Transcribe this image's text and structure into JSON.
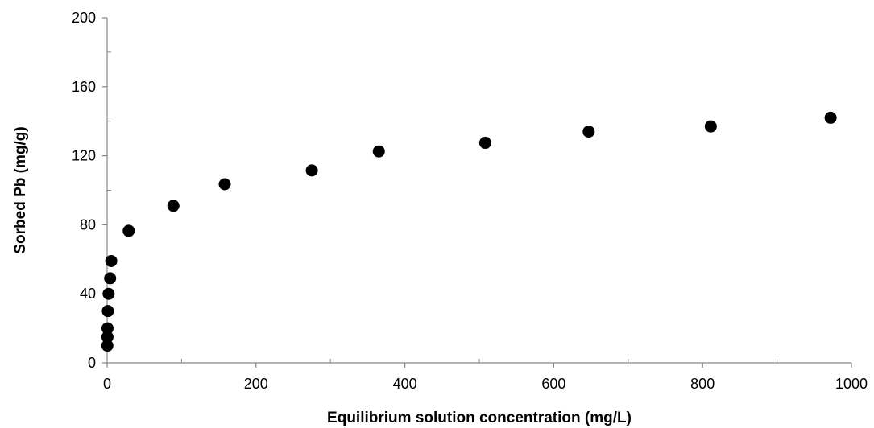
{
  "chart_data": {
    "type": "scatter",
    "title": "",
    "xlabel": "Equilibrium solution concentration (mg/L)",
    "ylabel": "Sorbed Pb (mg/g)",
    "xlim": [
      0,
      1000
    ],
    "ylim": [
      0,
      200
    ],
    "xticks": [
      0,
      200,
      400,
      600,
      800,
      1000
    ],
    "yticks": [
      0,
      40,
      80,
      120,
      160,
      200
    ],
    "xtick_labels": [
      "0",
      "200",
      "400",
      "600",
      "800",
      "1000"
    ],
    "ytick_labels": [
      "0",
      "40",
      "80",
      "120",
      "160",
      "200"
    ],
    "grid": false,
    "legend": "none",
    "marker_color": "#000000",
    "series": [
      {
        "points": [
          {
            "x": 0.3,
            "y": 10,
            "err": 0
          },
          {
            "x": 0.4,
            "y": 15,
            "err": 0
          },
          {
            "x": 0.5,
            "y": 20,
            "err": 0
          },
          {
            "x": 1.0,
            "y": 30,
            "err": 0
          },
          {
            "x": 2.0,
            "y": 40,
            "err": 0
          },
          {
            "x": 4.0,
            "y": 49,
            "err": 0
          },
          {
            "x": 5.5,
            "y": 59,
            "err": 0
          },
          {
            "x": 29,
            "y": 76.5,
            "err": 1
          },
          {
            "x": 89,
            "y": 91,
            "err": 1
          },
          {
            "x": 158,
            "y": 103.5,
            "err": 1
          },
          {
            "x": 275,
            "y": 111.5,
            "err": 1
          },
          {
            "x": 365,
            "y": 122.5,
            "err": 1
          },
          {
            "x": 508,
            "y": 127.5,
            "err": 3
          },
          {
            "x": 647,
            "y": 134,
            "err": 1.5
          },
          {
            "x": 811,
            "y": 137,
            "err": 1
          },
          {
            "x": 972,
            "y": 142,
            "err": 1
          }
        ]
      }
    ]
  }
}
